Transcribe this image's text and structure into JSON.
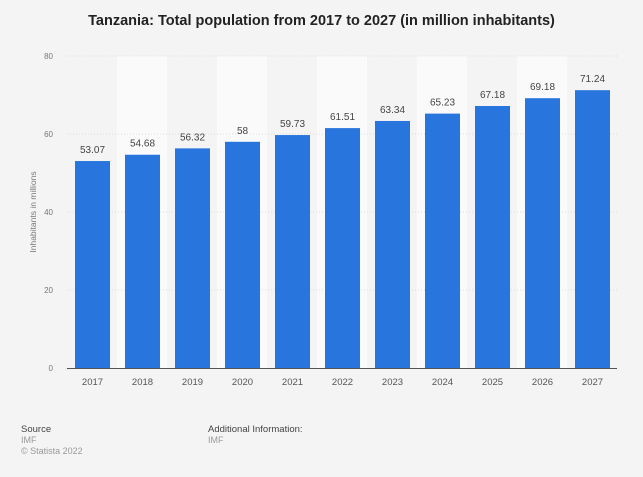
{
  "chart_data": {
    "type": "bar",
    "title": "Tanzania: Total population from 2017 to 2027 (in million inhabitants)",
    "xlabel": "",
    "ylabel": "Inhabitants in millions",
    "categories": [
      "2017",
      "2018",
      "2019",
      "2020",
      "2021",
      "2022",
      "2023",
      "2024",
      "2025",
      "2026",
      "2027"
    ],
    "values": [
      53.07,
      54.68,
      56.32,
      58,
      59.73,
      61.51,
      63.34,
      65.23,
      67.18,
      69.18,
      71.24
    ],
    "value_labels": [
      "53.07",
      "54.68",
      "56.32",
      "58",
      "59.73",
      "61.51",
      "63.34",
      "65.23",
      "67.18",
      "69.18",
      "71.24"
    ],
    "ylim": [
      0,
      80
    ],
    "yticks": [
      0,
      20,
      40,
      60,
      80
    ],
    "grid": true,
    "bar_color": "#2876dd"
  },
  "footer": {
    "source_label": "Source",
    "source_value": "IMF",
    "copyright": "© Statista 2022",
    "additional_label": "Additional Information:",
    "additional_value": "IMF"
  }
}
